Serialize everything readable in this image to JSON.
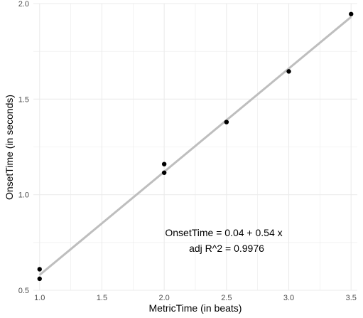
{
  "chart_data": {
    "type": "scatter",
    "xlabel": "MetricTime (in beats)",
    "ylabel": "OnsetTime (in seconds)",
    "xlim": [
      0.95,
      3.55
    ],
    "ylim": [
      0.5,
      2.0
    ],
    "x_ticks": [
      1.0,
      1.5,
      2.0,
      2.5,
      3.0,
      3.5
    ],
    "x_tick_labels": [
      "1.0",
      "1.5",
      "2.0",
      "2.5",
      "3.0",
      "3.5"
    ],
    "y_ticks": [
      0.5,
      1.0,
      1.5,
      2.0
    ],
    "y_tick_labels": [
      "0.5",
      "1.0",
      "1.5",
      "2.0"
    ],
    "grid": true,
    "points": [
      {
        "x": 1.0,
        "y": 0.61
      },
      {
        "x": 1.0,
        "y": 0.56
      },
      {
        "x": 2.0,
        "y": 1.16
      },
      {
        "x": 2.0,
        "y": 1.115
      },
      {
        "x": 2.5,
        "y": 1.38
      },
      {
        "x": 3.0,
        "y": 1.645
      },
      {
        "x": 3.5,
        "y": 1.945
      }
    ],
    "fit_line": {
      "intercept": 0.04,
      "slope": 0.54,
      "x_range": [
        1.0,
        3.5
      ]
    },
    "annotations": [
      "OnsetTime =  0.04 + 0.54 x",
      "adj R^2 =  0.9976"
    ],
    "colors": {
      "points": "#000000",
      "fit_line": "#bebebe",
      "grid": "#ebebeb",
      "tick_text": "#4d4d4d"
    }
  }
}
